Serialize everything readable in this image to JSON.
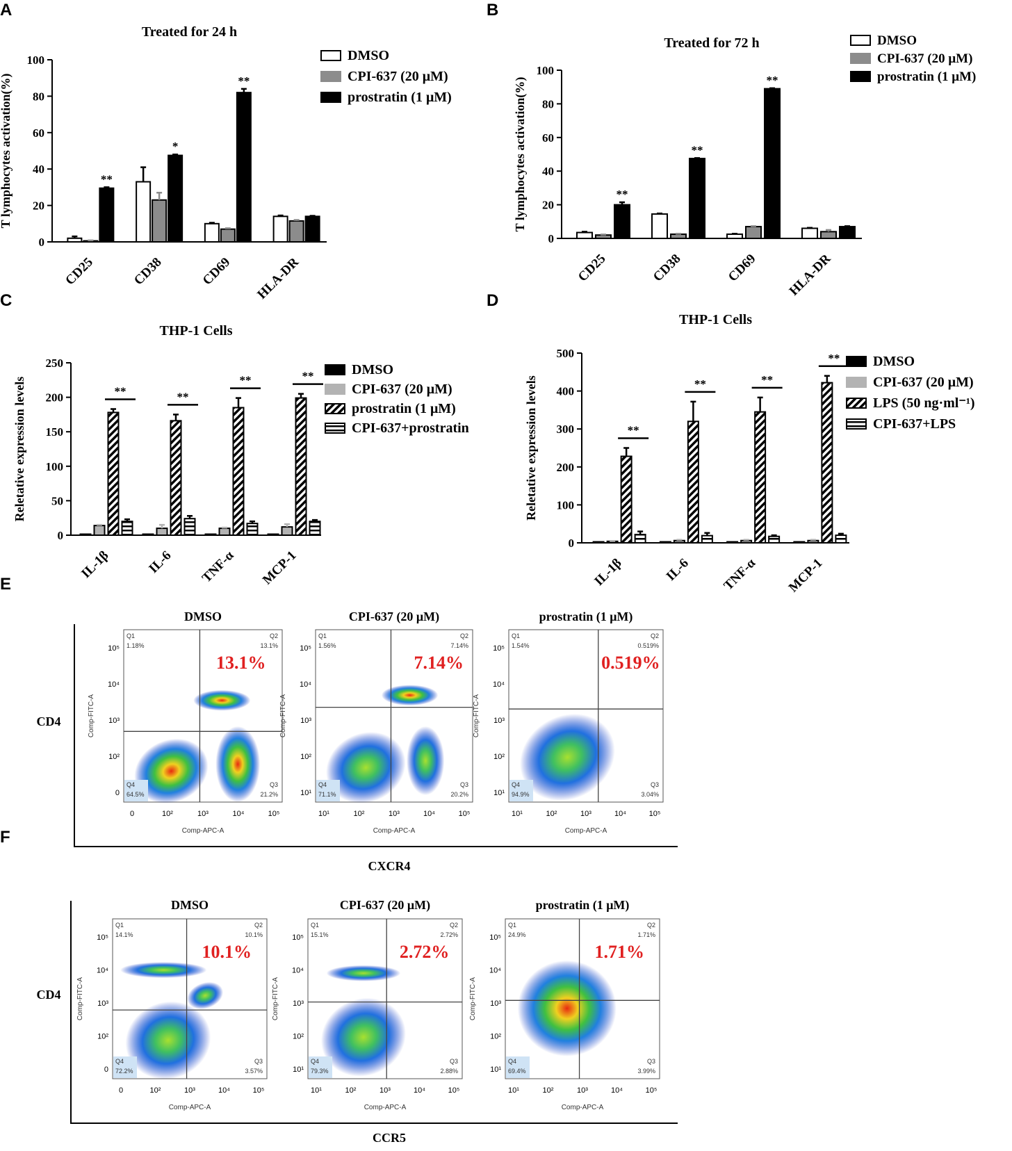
{
  "colors": {
    "white": "#ffffff",
    "gray": "#8c8c8c",
    "light_gray": "#b3b3b3",
    "black": "#000000",
    "red": "#e02020"
  },
  "chart_data": [
    {
      "panel": "A",
      "type": "bar",
      "title": "Treated for 24 h",
      "ylabel": "T lymphocytes activation(%)",
      "ylim": [
        0,
        100
      ],
      "yticks": [
        0,
        20,
        40,
        60,
        80,
        100
      ],
      "categories": [
        "CD25",
        "CD38",
        "CD69",
        "HLA-DR"
      ],
      "series": [
        {
          "name": "DMSO",
          "style": "open",
          "values": [
            2,
            33,
            10,
            14
          ],
          "errors": [
            1,
            8,
            0.5,
            0.5
          ]
        },
        {
          "name": "CPI-637 (20 μM)",
          "style": "gray",
          "values": [
            0.5,
            23,
            7,
            11.5
          ],
          "errors": [
            0.3,
            4,
            0.5,
            0.5
          ]
        },
        {
          "name": "prostratin (1 μM)",
          "style": "black",
          "values": [
            29.5,
            47.5,
            82,
            14
          ],
          "errors": [
            0.5,
            0.5,
            2,
            0.3
          ]
        }
      ],
      "significance": [
        "**",
        "*",
        "**",
        ""
      ]
    },
    {
      "panel": "B",
      "type": "bar",
      "title": "Treated for 72 h",
      "ylabel": "T lymphocytes activation(%)",
      "ylim": [
        0,
        100
      ],
      "yticks": [
        0,
        20,
        40,
        60,
        80,
        100
      ],
      "categories": [
        "CD25",
        "CD38",
        "CD69",
        "HLA-DR"
      ],
      "series": [
        {
          "name": "DMSO",
          "style": "open",
          "values": [
            3.5,
            14.5,
            2.5,
            6
          ],
          "errors": [
            0.5,
            0.3,
            0.3,
            0.3
          ]
        },
        {
          "name": "CPI-637 (20 μM)",
          "style": "gray",
          "values": [
            2,
            2.5,
            7,
            4
          ],
          "errors": [
            0.3,
            0.3,
            0.3,
            1
          ]
        },
        {
          "name": "prostratin (1 μM)",
          "style": "black",
          "values": [
            20,
            47.5,
            89,
            7
          ],
          "errors": [
            1.5,
            0.3,
            0.3,
            0.3
          ]
        }
      ],
      "significance": [
        "**",
        "**",
        "**",
        ""
      ]
    },
    {
      "panel": "C",
      "type": "bar",
      "title": "THP-1 Cells",
      "ylabel": "Reletative expression levels",
      "ylim": [
        0,
        250
      ],
      "yticks": [
        0,
        50,
        100,
        150,
        200,
        250
      ],
      "categories": [
        "IL-1β",
        "IL-6",
        "TNF-α",
        "MCP-1"
      ],
      "series": [
        {
          "name": "DMSO",
          "style": "black",
          "values": [
            1,
            1,
            1,
            1
          ],
          "errors": [
            0,
            0,
            0,
            0
          ]
        },
        {
          "name": "CPI-637 (20 μM)",
          "style": "light_gray",
          "values": [
            14,
            10,
            10,
            12
          ],
          "errors": [
            1,
            5,
            1,
            4
          ]
        },
        {
          "name": "prostratin (1 μM)",
          "style": "diag",
          "values": [
            178,
            166,
            185,
            199
          ],
          "errors": [
            5,
            9,
            14,
            6
          ]
        },
        {
          "name": "CPI-637+prostratin",
          "style": "horiz",
          "values": [
            20,
            24,
            17,
            20
          ],
          "errors": [
            3,
            4,
            3,
            2
          ]
        }
      ],
      "significance": [
        "**",
        "**",
        "**",
        "**"
      ]
    },
    {
      "panel": "D",
      "type": "bar",
      "title": "THP-1 Cells",
      "ylabel": "Reletative expression levels",
      "ylim": [
        0,
        500
      ],
      "yticks": [
        0,
        100,
        200,
        300,
        400,
        500
      ],
      "categories": [
        "IL-1β",
        "IL-6",
        "TNF-α",
        "MCP-1"
      ],
      "series": [
        {
          "name": "DMSO",
          "style": "black",
          "values": [
            1,
            1,
            1,
            1
          ],
          "errors": [
            0,
            0,
            0,
            0
          ]
        },
        {
          "name": "CPI-637 (20 μM)",
          "style": "light_gray",
          "values": [
            4,
            6,
            6,
            6
          ],
          "errors": [
            1,
            2,
            2,
            2
          ]
        },
        {
          "name": "LPS (50 ng·ml⁻¹)",
          "style": "diag",
          "values": [
            228,
            320,
            345,
            422
          ],
          "errors": [
            22,
            52,
            38,
            18
          ]
        },
        {
          "name": "CPI-637+LPS",
          "style": "horiz",
          "values": [
            22,
            19,
            17,
            20
          ],
          "errors": [
            8,
            7,
            3,
            4
          ]
        }
      ],
      "significance": [
        "**",
        "**",
        "**",
        "**"
      ]
    }
  ],
  "panel_labels": [
    "A",
    "B",
    "C",
    "D",
    "E",
    "F"
  ],
  "flow": {
    "E": {
      "ylabel": "CD4",
      "xlabel": "CXCR4",
      "plots": [
        {
          "title": "DMSO",
          "big_pct": "13.1%",
          "q1": "1.18%",
          "q2": "13.1%",
          "q3": "21.2%",
          "q4": "64.5%"
        },
        {
          "title": "CPI-637 (20 μM)",
          "big_pct": "7.14%",
          "q1": "1.56%",
          "q2": "7.14%",
          "q3": "20.2%",
          "q4": "71.1%"
        },
        {
          "title": "prostratin (1 μM)",
          "big_pct": "0.519%",
          "q1": "1.54%",
          "q2": "0.519%",
          "q3": "3.04%",
          "q4": "94.9%"
        }
      ]
    },
    "F": {
      "ylabel": "CD4",
      "xlabel": "CCR5",
      "plots": [
        {
          "title": "DMSO",
          "big_pct": "10.1%",
          "q1": "14.1%",
          "q2": "10.1%",
          "q3": "3.57%",
          "q4": "72.2%"
        },
        {
          "title": "CPI-637 (20 μM)",
          "big_pct": "2.72%",
          "q1": "15.1%",
          "q2": "2.72%",
          "q3": "2.88%",
          "q4": "79.3%"
        },
        {
          "title": "prostratin (1 μM)",
          "big_pct": "1.71%",
          "q1": "24.9%",
          "q2": "1.71%",
          "q3": "3.99%",
          "q4": "69.4%"
        }
      ]
    },
    "axis": {
      "x_axis_title": "Comp-APC-A",
      "y_axis_title": "Comp-FITC-A",
      "quadrants": [
        "Q1",
        "Q2",
        "Q3",
        "Q4"
      ],
      "x_ticks": [
        "0",
        "10²",
        "10³",
        "10⁴",
        "10⁵"
      ],
      "x_ticks_log": [
        "10¹",
        "10²",
        "10³",
        "10⁴",
        "10⁵"
      ],
      "y_ticks_zero": [
        "0",
        "10²",
        "10³",
        "10⁴",
        "10⁵"
      ],
      "y_ticks_log": [
        "10¹",
        "10²",
        "10³",
        "10⁴",
        "10⁵"
      ]
    }
  }
}
